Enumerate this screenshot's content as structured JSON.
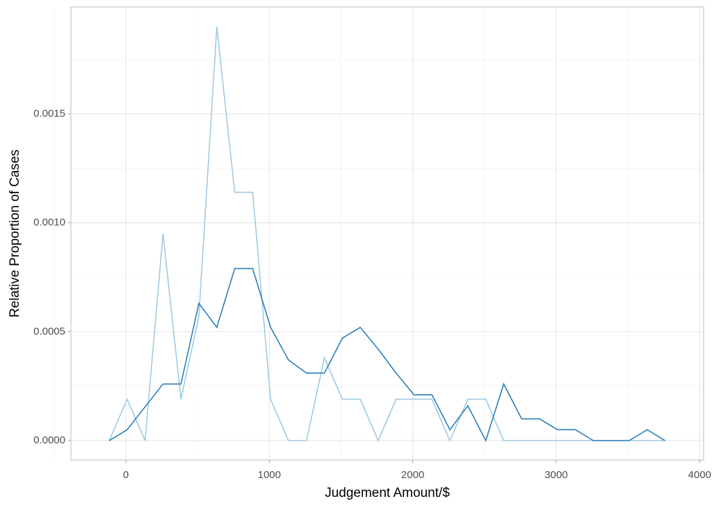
{
  "chart_data": {
    "type": "line",
    "x_label": "Judgement Amount/$",
    "y_label": "Relative Proportion of Cases",
    "x": [
      -116,
      9,
      134,
      259,
      384,
      509,
      634,
      759,
      884,
      1009,
      1134,
      1259,
      1384,
      1509,
      1634,
      1759,
      1884,
      2009,
      2134,
      2259,
      2384,
      2509,
      2634,
      2759,
      2884,
      3009,
      3134,
      3259,
      3384,
      3509,
      3634,
      3759
    ],
    "series": [
      {
        "color": "#9ecae1",
        "values": [
          0,
          0.00019,
          0,
          0.00095,
          0.00019,
          0.00057,
          0.0019,
          0.00114,
          0.00114,
          0.00019,
          0,
          0,
          0.00038,
          0.00019,
          0.00019,
          0,
          0.00019,
          0.00019,
          0.00019,
          0,
          0.00019,
          0.00019,
          0,
          0,
          0,
          0,
          0,
          0,
          0,
          0,
          0,
          0
        ]
      },
      {
        "color": "#2c7fb8",
        "values": [
          0,
          5e-05,
          0.000155,
          0.00026,
          0.00026,
          0.00063,
          0.00052,
          0.00079,
          0.00079,
          0.00052,
          0.00037,
          0.00031,
          0.00031,
          0.00047,
          0.00052,
          0.00042,
          0.00031,
          0.00021,
          0.00021,
          5e-05,
          0.00016,
          0,
          0.00026,
          0.0001,
          0.0001,
          5e-05,
          5e-05,
          0,
          0,
          0,
          5e-05,
          0
        ]
      }
    ],
    "xlim": [
      -383,
      4028
    ],
    "ylim": [
      -8.93e-05,
      0.001991
    ],
    "xticks": [
      0,
      1000,
      2000,
      3000,
      4000
    ],
    "yticks": [
      {
        "value": 0,
        "label": "0.0000"
      },
      {
        "value": 0.0005,
        "label": "0.0005"
      },
      {
        "value": 0.001,
        "label": "0.0010"
      },
      {
        "value": 0.0015,
        "label": "0.0015"
      }
    ],
    "grid": true
  }
}
